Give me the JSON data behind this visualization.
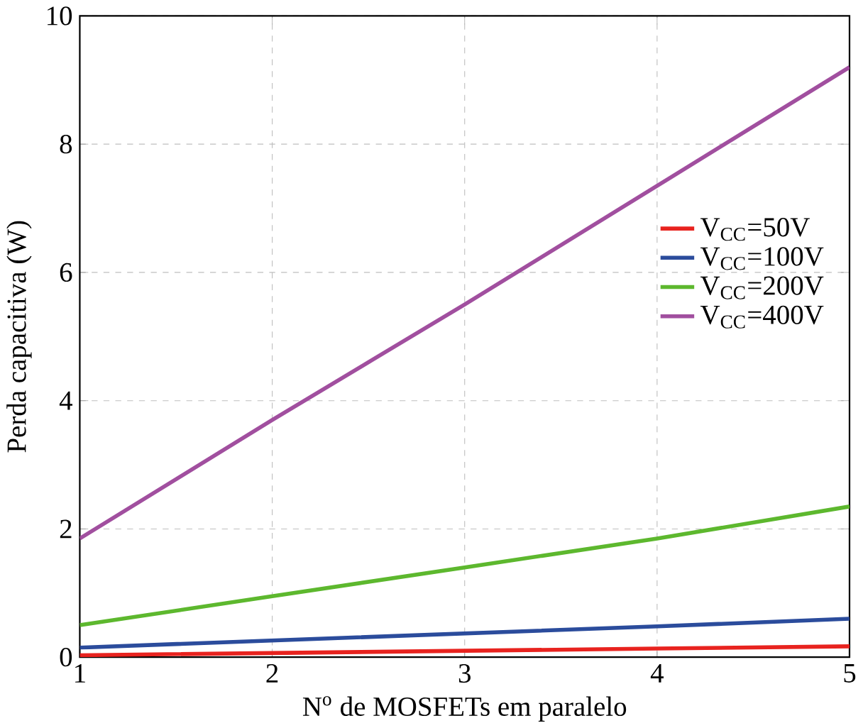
{
  "chart_data": {
    "type": "line",
    "xlabel": "N$^{o}$ de MOSFETs em paralelo",
    "ylabel": "Perda capacitiva (W)",
    "x": [
      1,
      2,
      3,
      4,
      5
    ],
    "series": [
      {
        "name": "V$_{CC}$=50V",
        "color": "#e8231f",
        "values": [
          0.03,
          0.065,
          0.1,
          0.135,
          0.17
        ]
      },
      {
        "name": "V$_{CC}$=100V",
        "color": "#2b4c9c",
        "values": [
          0.15,
          0.26,
          0.37,
          0.48,
          0.6
        ]
      },
      {
        "name": "V$_{CC}$=200V",
        "color": "#5db82e",
        "values": [
          0.5,
          0.95,
          1.4,
          1.85,
          2.35
        ]
      },
      {
        "name": "V$_{CC}$=400V",
        "color": "#a14f9f",
        "values": [
          1.85,
          3.7,
          5.5,
          7.35,
          9.2
        ]
      }
    ],
    "xlim": [
      1,
      5
    ],
    "ylim": [
      0,
      10
    ],
    "xticks": [
      1,
      2,
      3,
      4,
      5
    ],
    "yticks": [
      0,
      2,
      4,
      6,
      8,
      10
    ],
    "grid": true,
    "legend": "right",
    "marker": "none",
    "line_style": "solid"
  }
}
